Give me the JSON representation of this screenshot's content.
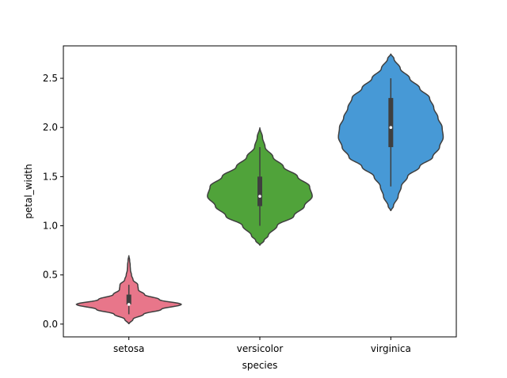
{
  "chart_data": {
    "type": "violin",
    "title": "",
    "xlabel": "species",
    "ylabel": "petal_width",
    "ylim": [
      -0.13,
      2.83
    ],
    "yticks": [
      0.0,
      0.5,
      1.0,
      1.5,
      2.0,
      2.5
    ],
    "ytick_labels": [
      "0.0",
      "0.5",
      "1.0",
      "1.5",
      "2.0",
      "2.5"
    ],
    "grid": false,
    "categories": [
      "setosa",
      "versicolor",
      "virginica"
    ],
    "series": [
      {
        "category": "setosa",
        "color": "#e8768a",
        "min": 0.1,
        "q1": 0.2,
        "median": 0.2,
        "q3": 0.3,
        "max": 0.4,
        "kde_extent": [
          0.0,
          0.7
        ],
        "profile": [
          [
            0.0,
            0.0
          ],
          [
            0.05,
            0.08
          ],
          [
            0.1,
            0.28
          ],
          [
            0.15,
            0.62
          ],
          [
            0.2,
            1.0
          ],
          [
            0.25,
            0.58
          ],
          [
            0.3,
            0.3
          ],
          [
            0.35,
            0.18
          ],
          [
            0.4,
            0.17
          ],
          [
            0.45,
            0.08
          ],
          [
            0.5,
            0.05
          ],
          [
            0.55,
            0.03
          ],
          [
            0.6,
            0.025
          ],
          [
            0.65,
            0.015
          ],
          [
            0.7,
            0.0
          ]
        ]
      },
      {
        "category": "versicolor",
        "color": "#50a33a",
        "min": 1.0,
        "q1": 1.2,
        "median": 1.3,
        "q3": 1.5,
        "max": 1.8,
        "kde_extent": [
          0.8,
          2.0
        ],
        "profile": [
          [
            0.8,
            0.0
          ],
          [
            0.85,
            0.08
          ],
          [
            0.9,
            0.16
          ],
          [
            1.0,
            0.33
          ],
          [
            1.1,
            0.65
          ],
          [
            1.2,
            0.85
          ],
          [
            1.3,
            1.0
          ],
          [
            1.4,
            0.95
          ],
          [
            1.5,
            0.72
          ],
          [
            1.6,
            0.45
          ],
          [
            1.7,
            0.25
          ],
          [
            1.8,
            0.1
          ],
          [
            1.9,
            0.05
          ],
          [
            2.0,
            0.0
          ]
        ]
      },
      {
        "category": "virginica",
        "color": "#4799d6",
        "min": 1.4,
        "q1": 1.8,
        "median": 2.0,
        "q3": 2.3,
        "max": 2.5,
        "kde_extent": [
          1.15,
          2.75
        ],
        "profile": [
          [
            1.15,
            0.0
          ],
          [
            1.2,
            0.05
          ],
          [
            1.3,
            0.14
          ],
          [
            1.4,
            0.2
          ],
          [
            1.5,
            0.32
          ],
          [
            1.6,
            0.55
          ],
          [
            1.7,
            0.8
          ],
          [
            1.8,
            0.93
          ],
          [
            1.9,
            1.0
          ],
          [
            2.0,
            0.98
          ],
          [
            2.1,
            0.9
          ],
          [
            2.2,
            0.82
          ],
          [
            2.3,
            0.74
          ],
          [
            2.4,
            0.55
          ],
          [
            2.5,
            0.36
          ],
          [
            2.6,
            0.18
          ],
          [
            2.7,
            0.06
          ],
          [
            2.75,
            0.0
          ]
        ]
      }
    ]
  }
}
